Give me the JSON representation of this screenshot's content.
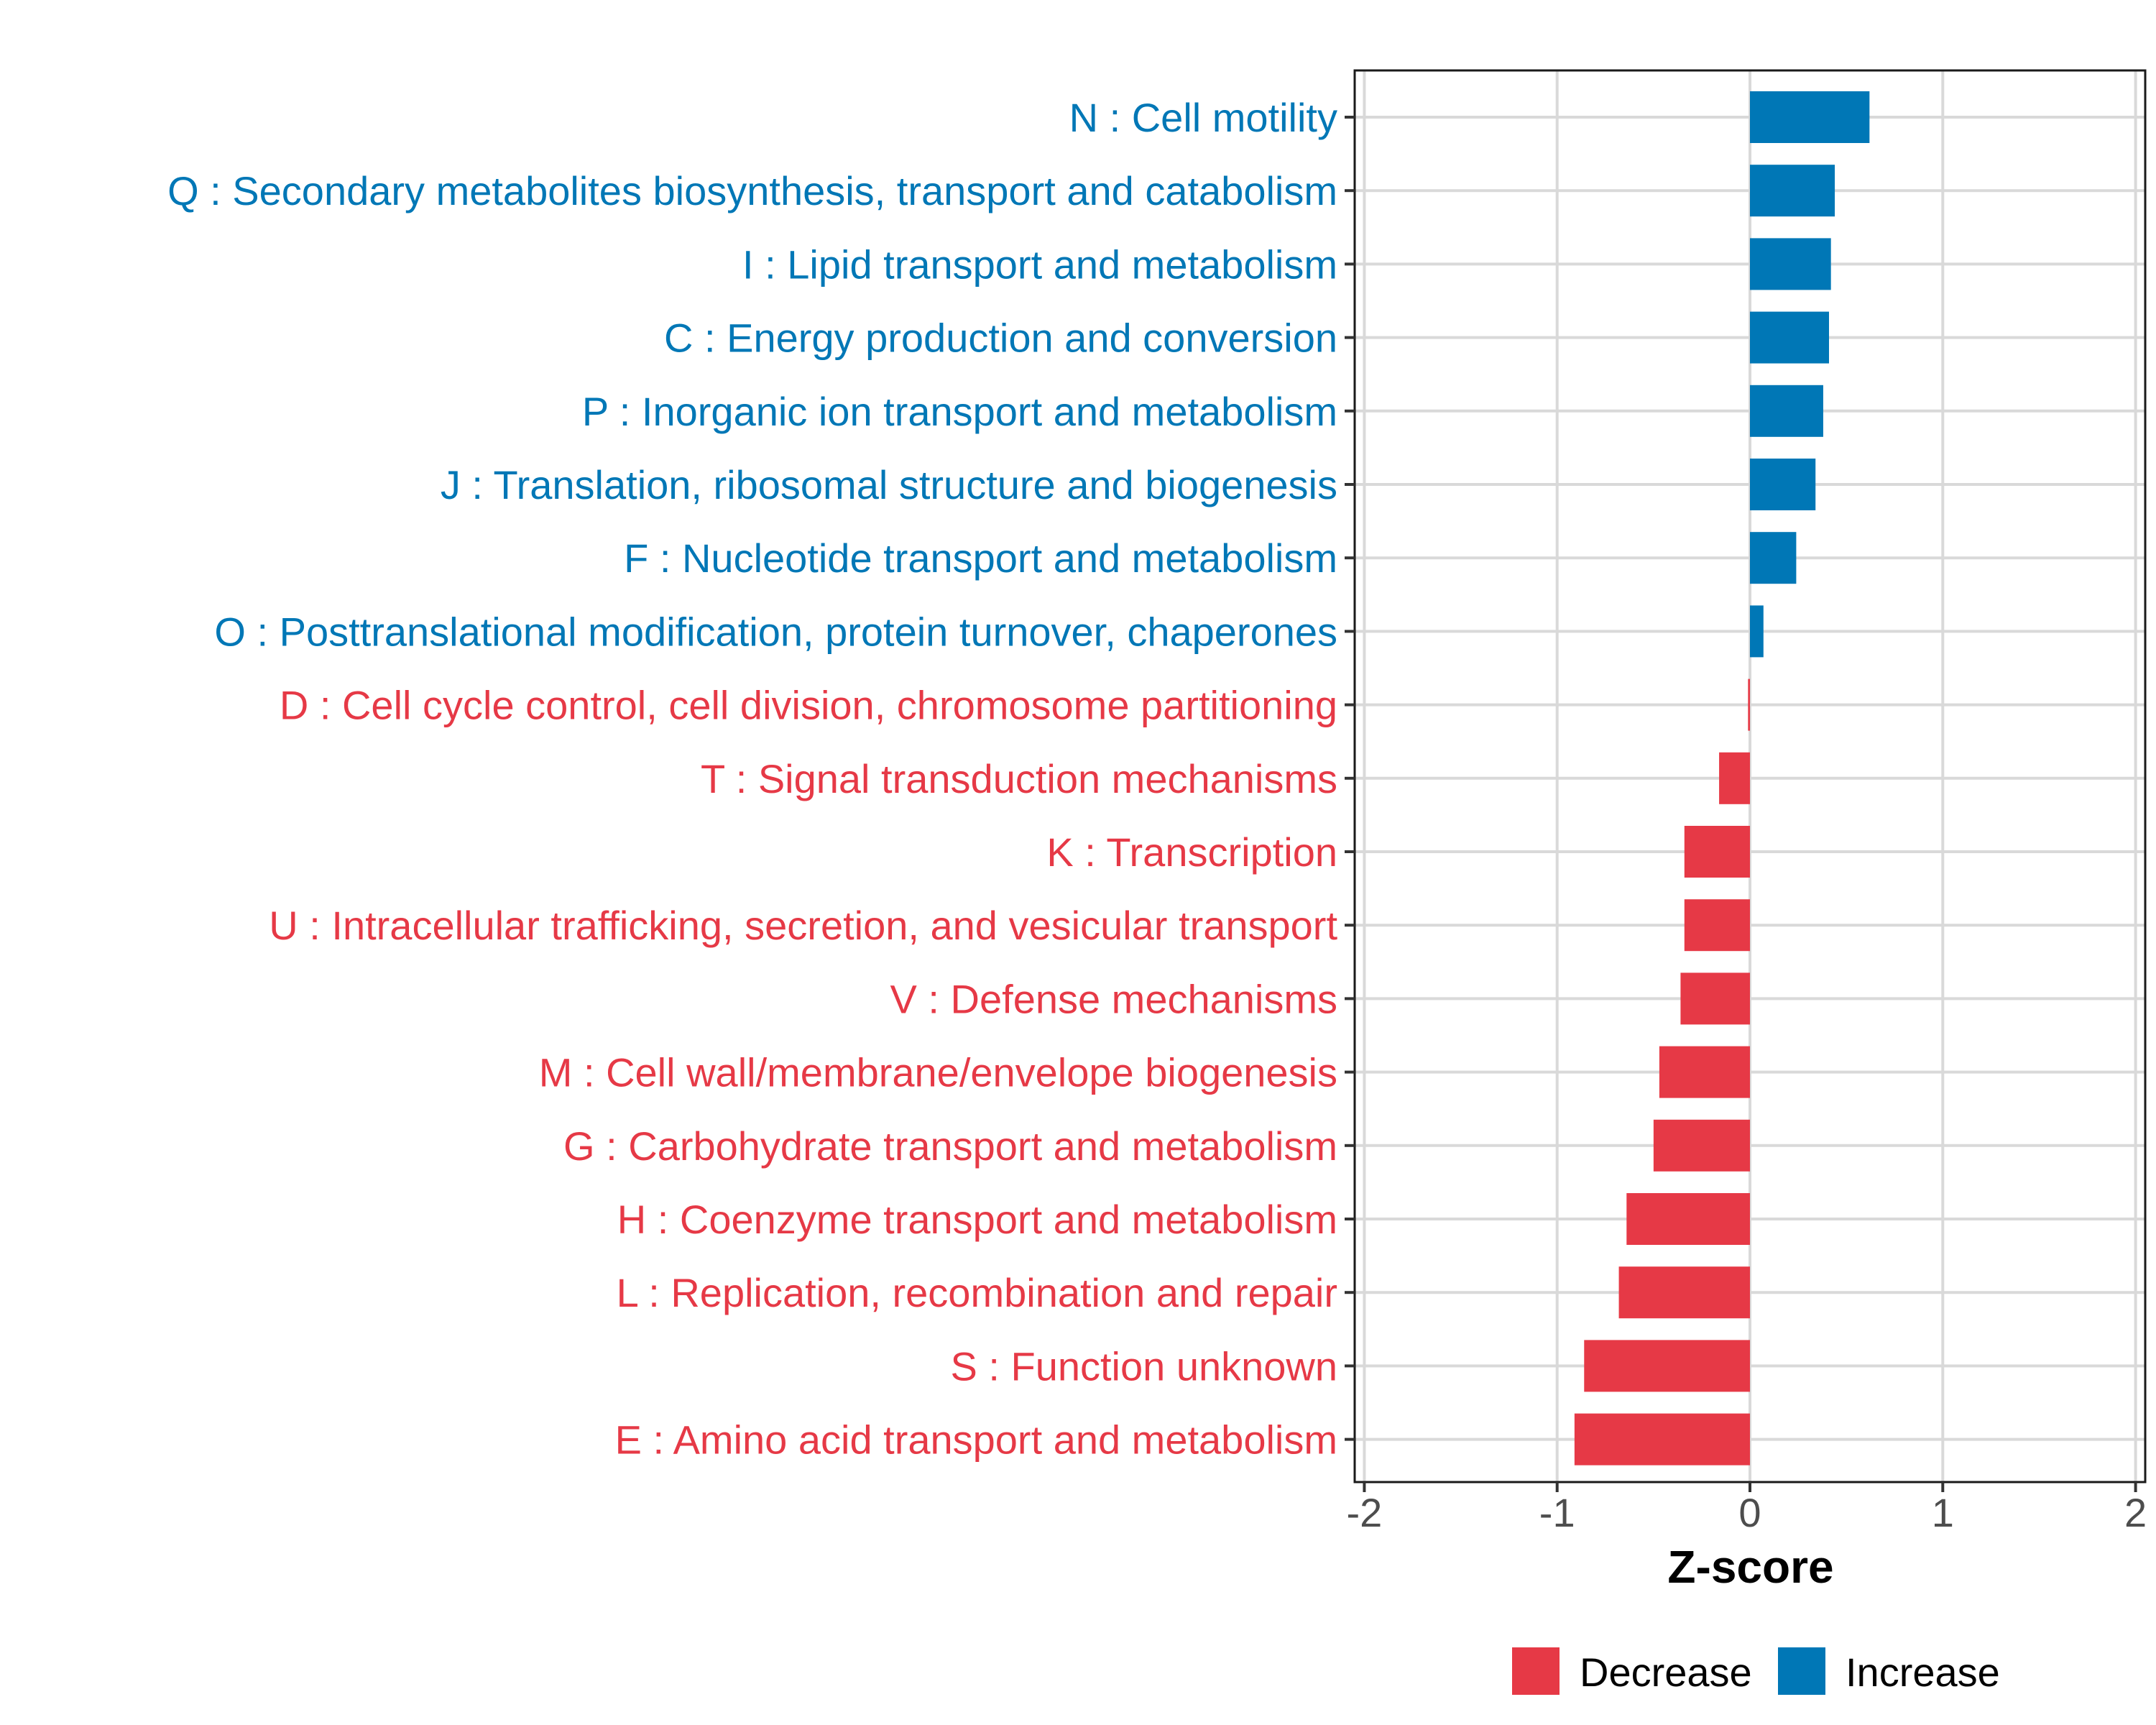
{
  "chart_data": {
    "type": "bar",
    "orientation": "horizontal",
    "title": "",
    "xlabel": "Z-score",
    "ylabel": "",
    "xlim": [
      -2.05,
      2.05
    ],
    "xticks": [
      -2,
      -1,
      0,
      1,
      2
    ],
    "xtick_labels": [
      "-2",
      "-1",
      "0",
      "1",
      "2"
    ],
    "grid": true,
    "legend_position": "bottom",
    "legend": [
      {
        "label": "Decrease",
        "color": "#e63946"
      },
      {
        "label": "Increase",
        "color": "#0077b6"
      }
    ],
    "colors": {
      "Decrease": "#e63946",
      "Increase": "#0077b6"
    },
    "categories": [
      "N : Cell motility",
      "Q : Secondary metabolites biosynthesis, transport and catabolism",
      "I : Lipid transport and metabolism",
      "C : Energy production and conversion",
      "P : Inorganic ion transport and metabolism",
      "J : Translation, ribosomal structure and biogenesis",
      "F : Nucleotide transport and metabolism",
      "O : Posttranslational modification, protein turnover, chaperones",
      "D : Cell cycle control, cell division, chromosome partitioning",
      "T : Signal transduction mechanisms",
      "K : Transcription",
      "U : Intracellular trafficking, secretion, and vesicular transport",
      "V : Defense mechanisms",
      "M : Cell wall/membrane/envelope biogenesis",
      "G : Carbohydrate transport and metabolism",
      "H : Coenzyme transport and metabolism",
      "L : Replication, recombination and repair",
      "S : Function unknown",
      "E : Amino acid transport and metabolism"
    ],
    "values": [
      0.62,
      0.44,
      0.42,
      0.41,
      0.38,
      0.34,
      0.24,
      0.07,
      -0.01,
      -0.16,
      -0.34,
      -0.34,
      -0.36,
      -0.47,
      -0.5,
      -0.64,
      -0.68,
      -0.86,
      -0.91
    ],
    "direction": [
      "Increase",
      "Increase",
      "Increase",
      "Increase",
      "Increase",
      "Increase",
      "Increase",
      "Increase",
      "Decrease",
      "Decrease",
      "Decrease",
      "Decrease",
      "Decrease",
      "Decrease",
      "Decrease",
      "Decrease",
      "Decrease",
      "Decrease",
      "Decrease"
    ]
  }
}
